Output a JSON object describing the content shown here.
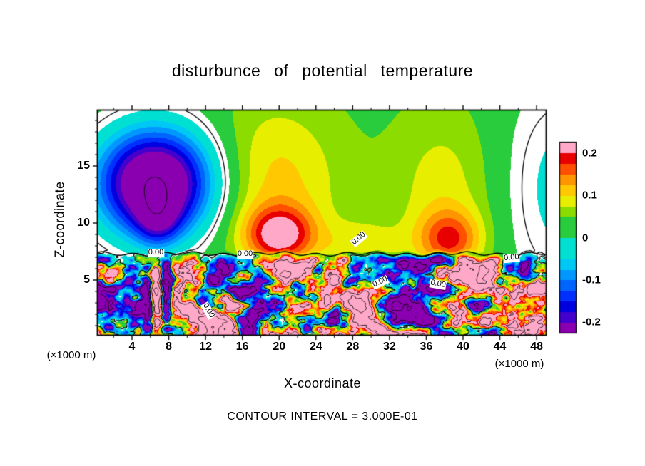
{
  "chart_data": {
    "type": "heatmap",
    "title": "disturbunce  of  potential  temperature",
    "xlabel": "X-coordinate",
    "ylabel": "Z-coordinate",
    "unit_note": "(×1000 m)",
    "contour_note": "CONTOUR INTERVAL =  3.000E-01",
    "contour_interval": 0.3,
    "xlim": [
      0.275,
      49.0
    ],
    "zlim": [
      0.1875,
      19.875
    ],
    "x_ticks": [
      4,
      8,
      12,
      16,
      20,
      24,
      28,
      32,
      36,
      40,
      44,
      48
    ],
    "x_minor_step": 2,
    "z_ticks": [
      5,
      10,
      15
    ],
    "z_minor_step": 1,
    "colorbar_labels": [
      {
        "text": "0.2",
        "value": 0.2
      },
      {
        "text": "0.1",
        "value": 0.1
      },
      {
        "text": "0",
        "value": 0.0
      },
      {
        "text": "-0.1",
        "value": -0.1
      },
      {
        "text": "-0.2",
        "value": -0.2
      }
    ],
    "bar_range": [
      -0.225,
      0.225
    ],
    "value_range": [
      -0.2,
      0.2
    ],
    "interface_z": 7.3,
    "background_value": 0.04,
    "turb_amp": 1.1,
    "contour_levels": [
      -0.9,
      -0.6,
      -0.3,
      0,
      0.3,
      0.6,
      0.9
    ],
    "colormap": [
      {
        "max": -0.2,
        "color": "#8A00B0"
      },
      {
        "max": -0.175,
        "color": "#4400CC"
      },
      {
        "max": -0.15,
        "color": "#0000E0"
      },
      {
        "max": -0.125,
        "color": "#0030FF"
      },
      {
        "max": -0.1,
        "color": "#0064FF"
      },
      {
        "max": -0.075,
        "color": "#0098FF"
      },
      {
        "max": -0.05,
        "color": "#00C8F5"
      },
      {
        "max": -0.015,
        "color": "#00E0D2"
      },
      {
        "max": 0.015,
        "color": "#FFFFFF"
      },
      {
        "max": 0.05,
        "color": "#28CC3C"
      },
      {
        "max": 0.075,
        "color": "#8CDC00"
      },
      {
        "max": 0.1,
        "color": "#E8EE00"
      },
      {
        "max": 0.125,
        "color": "#FFC800"
      },
      {
        "max": 0.15,
        "color": "#FF9600"
      },
      {
        "max": 0.175,
        "color": "#FF5000"
      },
      {
        "max": 0.2,
        "color": "#E80000"
      },
      {
        "max": 9.9,
        "color": "#FFA8C8"
      }
    ],
    "upper_blobs": [
      {
        "x": 6.5,
        "z": 13.5,
        "sx": 4.5,
        "sz": 3.4,
        "amp": -0.34
      },
      {
        "x": 6.8,
        "z": 10.3,
        "sx": 1.6,
        "sz": 1.6,
        "amp": -0.1
      },
      {
        "x": 20.0,
        "z": 9.0,
        "sx": 2.6,
        "sz": 1.7,
        "amp": 0.16
      },
      {
        "x": 19.5,
        "z": 13.5,
        "sx": 5.0,
        "sz": 5.0,
        "amp": 0.07
      },
      {
        "x": 38.5,
        "z": 8.6,
        "sx": 2.4,
        "sz": 1.8,
        "amp": 0.12
      },
      {
        "x": 38.0,
        "z": 13.0,
        "sx": 4.0,
        "sz": 5.0,
        "amp": 0.05
      },
      {
        "x": 51.5,
        "z": 13.0,
        "sx": 5.5,
        "sz": 7.0,
        "amp": -0.07
      },
      {
        "x": 29.0,
        "z": 8.2,
        "sx": 3.0,
        "sz": 1.4,
        "amp": 0.05
      }
    ],
    "lower_blobs": [
      {
        "x": 6.6,
        "z": 4.2,
        "sx": 0.45,
        "sz": 2.6,
        "amp": 0.6
      },
      {
        "x": 7.7,
        "z": 4.0,
        "sx": 0.4,
        "sz": 2.2,
        "amp": -0.55
      },
      {
        "x": 5.6,
        "z": 3.5,
        "sx": 0.4,
        "sz": 1.8,
        "amp": -0.35
      },
      {
        "x": 21.0,
        "z": 5.6,
        "sx": 1.3,
        "sz": 0.9,
        "amp": 0.45
      },
      {
        "x": 28.6,
        "z": 3.0,
        "sx": 1.6,
        "sz": 1.3,
        "amp": 0.5
      },
      {
        "x": 33.0,
        "z": 2.2,
        "sx": 1.2,
        "sz": 0.9,
        "amp": -0.5
      },
      {
        "x": 40.0,
        "z": 5.3,
        "sx": 1.4,
        "sz": 1.0,
        "amp": 0.4
      },
      {
        "x": 46.0,
        "z": 2.8,
        "sx": 2.0,
        "sz": 1.4,
        "amp": 0.55
      },
      {
        "x": 13.5,
        "z": 1.6,
        "sx": 1.6,
        "sz": 1.0,
        "amp": 0.5
      },
      {
        "x": 17.5,
        "z": 3.2,
        "sx": 1.2,
        "sz": 0.8,
        "amp": -0.4
      }
    ],
    "contour_labels": [
      {
        "text": "0.00",
        "x": 6.6,
        "z": 7.35,
        "rot": 0
      },
      {
        "text": "0.00",
        "x": 16.3,
        "z": 7.25,
        "rot": 0
      },
      {
        "text": "0.00",
        "x": 28.7,
        "z": 8.6,
        "rot": -40
      },
      {
        "text": "0.00",
        "x": 45.3,
        "z": 6.95,
        "rot": -5
      },
      {
        "text": "0.00",
        "x": 37.3,
        "z": 4.6,
        "rot": 10
      },
      {
        "text": "0.00",
        "x": 12.3,
        "z": 2.3,
        "rot": 60
      },
      {
        "text": "0.00",
        "x": 31.0,
        "z": 4.8,
        "rot": -25
      }
    ]
  }
}
